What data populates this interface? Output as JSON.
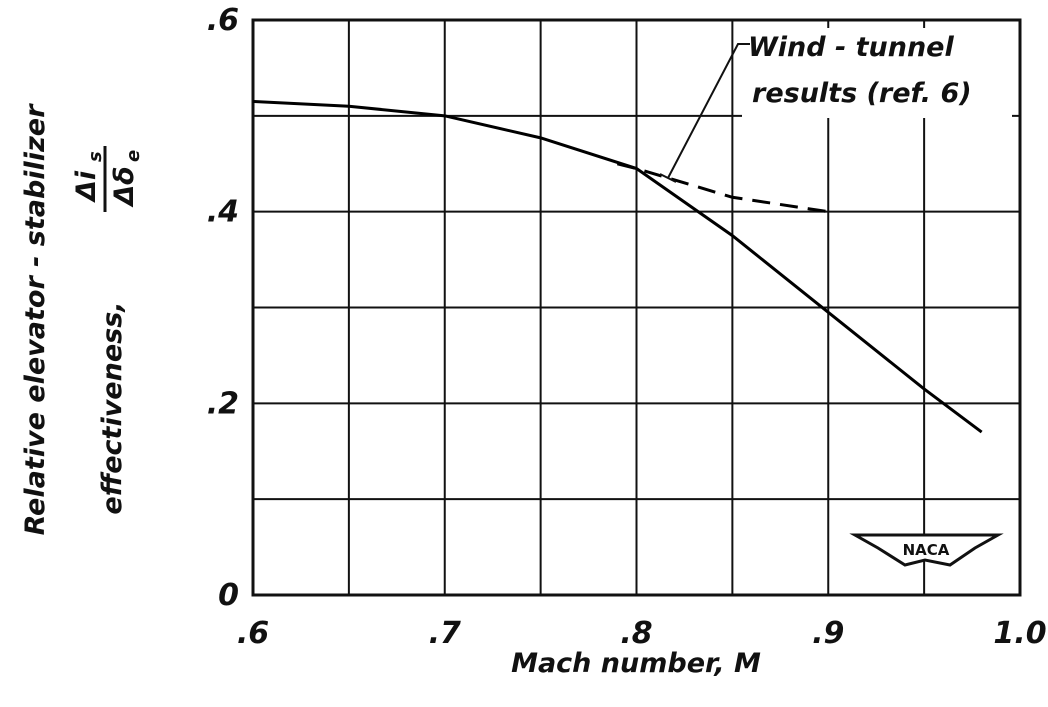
{
  "chart_data": {
    "type": "line",
    "x_label": "Mach number, M",
    "y_label": [
      "Relative elevator - stabilizer",
      "effectiveness,"
    ],
    "y_label_fraction": {
      "numerator": "Δi",
      "numerator_sub": "s",
      "denominator": "Δδ",
      "denominator_sub": "e"
    },
    "annotation": [
      "Wind - tunnel",
      "results (ref. 6)"
    ],
    "logo": "NACA",
    "series": [
      {
        "color": "#000000",
        "dash": false,
        "x": [
          0.6,
          0.65,
          0.7,
          0.75,
          0.8,
          0.85,
          0.9,
          0.95,
          0.98
        ],
        "values": [
          0.515,
          0.51,
          0.5,
          0.477,
          0.445,
          0.375,
          0.295,
          0.215,
          0.17
        ]
      },
      {
        "color": "#000000",
        "dash": true,
        "x": [
          0.79,
          0.8,
          0.85,
          0.9
        ],
        "values": [
          0.45,
          0.445,
          0.415,
          0.4
        ]
      }
    ],
    "xlim": [
      0.6,
      1.0
    ],
    "ylim": [
      0,
      0.6
    ],
    "xticks": [
      {
        "value": 0.6,
        "label": ".6"
      },
      {
        "value": 0.7,
        "label": ".7"
      },
      {
        "value": 0.8,
        "label": ".8"
      },
      {
        "value": 0.9,
        "label": ".9"
      },
      {
        "value": 1.0,
        "label": "1.0"
      }
    ],
    "yticks": [
      0,
      {
        "value": 0.2,
        "label": ".2"
      },
      {
        "value": 0.4,
        "label": ".4"
      },
      {
        "value": 0.6,
        "label": ".6"
      }
    ],
    "xgrid": [
      0.6,
      0.65,
      0.7,
      0.75,
      0.8,
      0.85,
      0.9,
      0.95,
      1.0
    ],
    "ygrid": [
      0,
      0.1,
      0.2,
      0.3,
      0.4,
      0.5,
      0.6
    ],
    "grid": true
  }
}
